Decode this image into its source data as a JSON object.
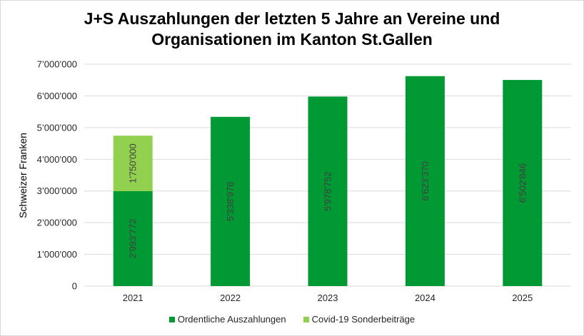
{
  "chart_data": {
    "type": "bar",
    "stacked": true,
    "title_lines": [
      "J+S Auszahlungen der letzten 5 Jahre an Vereine und",
      "Organisationen im Kanton St.Gallen"
    ],
    "xlabel": "",
    "ylabel": "Schweizer Franken",
    "ylim": [
      0,
      7000000
    ],
    "yticks": [
      0,
      1000000,
      2000000,
      3000000,
      4000000,
      5000000,
      6000000,
      7000000
    ],
    "ytick_labels": [
      "0",
      "1’000’000",
      "2’000’000",
      "3’000’000",
      "4’000’000",
      "5’000’000",
      "6’000’000",
      "7’000’000"
    ],
    "grid": true,
    "categories": [
      "2021",
      "2022",
      "2023",
      "2024",
      "2025"
    ],
    "series": [
      {
        "name": "Ordentliche Auszahlungen",
        "color": "#009933",
        "values": [
          2993772,
          5338978,
          5978752,
          6623370,
          6502846
        ],
        "labels": [
          "2'993'772",
          "5'338'978",
          "5'978'752",
          "6'623'370",
          "6'502'846"
        ]
      },
      {
        "name": "Covid-19 Sonderbeiträge",
        "color": "#92D050",
        "values": [
          1750000,
          null,
          null,
          null,
          null
        ],
        "labels": [
          "1'750'000",
          null,
          null,
          null,
          null
        ]
      }
    ],
    "legend_position": "bottom"
  }
}
